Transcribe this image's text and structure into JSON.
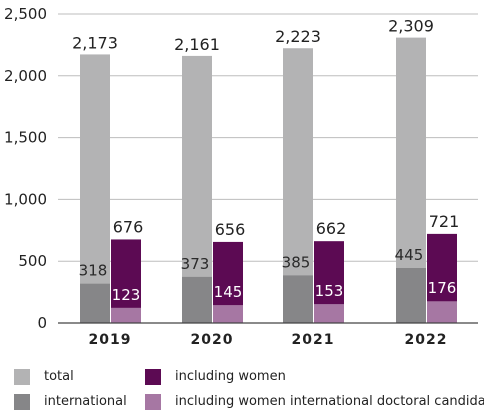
{
  "chart_data": {
    "type": "bar",
    "categories": [
      "2019",
      "2020",
      "2021",
      "2022"
    ],
    "ylim": [
      0,
      2500
    ],
    "yticks": [
      "0",
      "500",
      "1,000",
      "1,500",
      "2,000",
      "2,500"
    ],
    "ytick_values": [
      0,
      500,
      1000,
      1500,
      2000,
      2500
    ],
    "grid": true,
    "legend_position": "bottom",
    "series": [
      {
        "name": "total",
        "values": [
          2173,
          2161,
          2223,
          2309
        ],
        "labels": [
          "2,173",
          "2,161",
          "2,223",
          "2,309"
        ],
        "color": "#b3b3b4",
        "group": "left"
      },
      {
        "name": "international",
        "values": [
          318,
          373,
          385,
          445
        ],
        "labels": [
          "318",
          "373",
          "385",
          "445"
        ],
        "color": "#868688",
        "group": "left"
      },
      {
        "name": "including women",
        "values": [
          676,
          656,
          662,
          721
        ],
        "labels": [
          "676",
          "656",
          "662",
          "721"
        ],
        "color": "#5c0a53",
        "group": "right"
      },
      {
        "name": "including women international doctoral candidates",
        "values": [
          123,
          145,
          153,
          176
        ],
        "labels": [
          "123",
          "145",
          "153",
          "176"
        ],
        "color": "#a677a3",
        "group": "right"
      }
    ]
  },
  "legend": {
    "items": [
      {
        "label": "total",
        "color": "#b3b3b4"
      },
      {
        "label": "including women",
        "color": "#5c0a53"
      },
      {
        "label": "international",
        "color": "#868688"
      },
      {
        "label": "including women international doctoral candidates",
        "color": "#a677a3"
      }
    ]
  }
}
